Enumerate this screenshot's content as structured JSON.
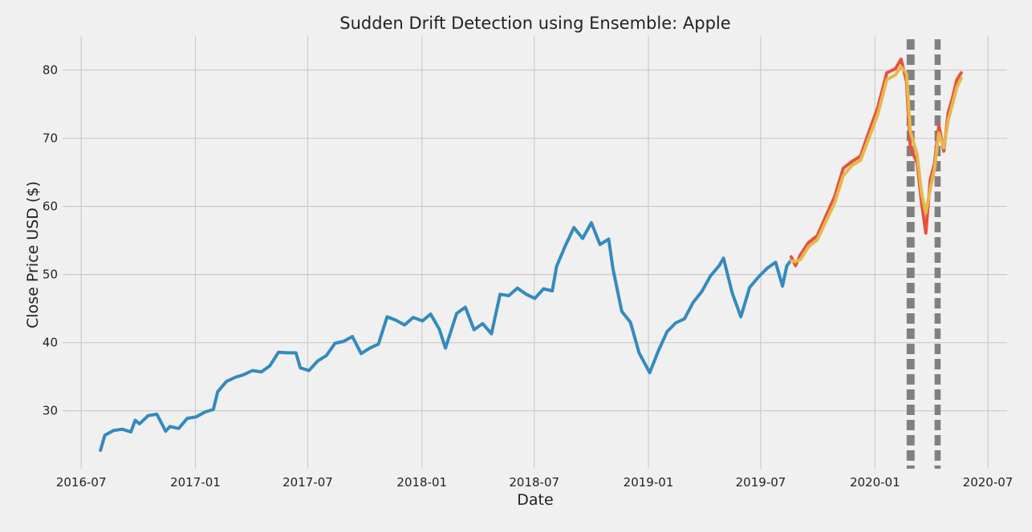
{
  "chart_data": {
    "type": "line",
    "title": "Sudden Drift Detection using Ensemble: Apple",
    "xlabel": "Date",
    "ylabel": "Close Price USD ($)",
    "xlim": [
      "2016-06-01",
      "2020-08-01"
    ],
    "ylim": [
      21.5,
      85
    ],
    "x_ticks": [
      "2016-07",
      "2017-01",
      "2017-07",
      "2018-01",
      "2018-07",
      "2019-01",
      "2019-07",
      "2020-01",
      "2020-07"
    ],
    "y_ticks": [
      30,
      40,
      50,
      60,
      70,
      80
    ],
    "grid": true,
    "legend": "none",
    "style_colors": {
      "background": "#f0f0f0",
      "grid": "#cbcbcb",
      "train": "#348abd",
      "actual": "#e5533d",
      "prediction": "#e6b74a",
      "drift": "#808080"
    },
    "series": [
      {
        "role": "train",
        "points": [
          [
            "2016-08-01",
            24.2
          ],
          [
            "2016-08-08",
            26.4
          ],
          [
            "2016-08-22",
            27.1
          ],
          [
            "2016-09-05",
            27.3
          ],
          [
            "2016-09-19",
            26.9
          ],
          [
            "2016-09-26",
            28.6
          ],
          [
            "2016-10-03",
            28.1
          ],
          [
            "2016-10-17",
            29.3
          ],
          [
            "2016-10-31",
            29.5
          ],
          [
            "2016-11-14",
            27.0
          ],
          [
            "2016-11-21",
            27.7
          ],
          [
            "2016-12-05",
            27.4
          ],
          [
            "2016-12-19",
            28.9
          ],
          [
            "2017-01-02",
            29.1
          ],
          [
            "2017-01-16",
            29.8
          ],
          [
            "2017-01-30",
            30.2
          ],
          [
            "2017-02-06",
            32.8
          ],
          [
            "2017-02-20",
            34.3
          ],
          [
            "2017-03-06",
            34.9
          ],
          [
            "2017-03-20",
            35.3
          ],
          [
            "2017-04-03",
            35.9
          ],
          [
            "2017-04-17",
            35.7
          ],
          [
            "2017-05-01",
            36.6
          ],
          [
            "2017-05-15",
            38.6
          ],
          [
            "2017-05-29",
            38.5
          ],
          [
            "2017-06-12",
            38.5
          ],
          [
            "2017-06-19",
            36.3
          ],
          [
            "2017-07-03",
            35.9
          ],
          [
            "2017-07-17",
            37.3
          ],
          [
            "2017-07-31",
            38.1
          ],
          [
            "2017-08-14",
            39.9
          ],
          [
            "2017-08-28",
            40.2
          ],
          [
            "2017-09-11",
            40.9
          ],
          [
            "2017-09-25",
            38.4
          ],
          [
            "2017-10-09",
            39.2
          ],
          [
            "2017-10-23",
            39.8
          ],
          [
            "2017-11-06",
            43.8
          ],
          [
            "2017-11-20",
            43.3
          ],
          [
            "2017-12-04",
            42.6
          ],
          [
            "2017-12-18",
            43.7
          ],
          [
            "2018-01-02",
            43.2
          ],
          [
            "2018-01-15",
            44.2
          ],
          [
            "2018-01-29",
            42.0
          ],
          [
            "2018-02-08",
            39.2
          ],
          [
            "2018-02-26",
            44.3
          ],
          [
            "2018-03-12",
            45.2
          ],
          [
            "2018-03-26",
            41.9
          ],
          [
            "2018-04-09",
            42.8
          ],
          [
            "2018-04-23",
            41.3
          ],
          [
            "2018-05-07",
            47.1
          ],
          [
            "2018-05-21",
            46.9
          ],
          [
            "2018-06-04",
            48.0
          ],
          [
            "2018-06-18",
            47.1
          ],
          [
            "2018-07-02",
            46.5
          ],
          [
            "2018-07-16",
            47.9
          ],
          [
            "2018-07-30",
            47.6
          ],
          [
            "2018-08-06",
            51.2
          ],
          [
            "2018-08-20",
            54.2
          ],
          [
            "2018-09-03",
            56.9
          ],
          [
            "2018-09-17",
            55.3
          ],
          [
            "2018-10-01",
            57.6
          ],
          [
            "2018-10-15",
            54.4
          ],
          [
            "2018-10-29",
            55.2
          ],
          [
            "2018-11-05",
            50.8
          ],
          [
            "2018-11-19",
            44.6
          ],
          [
            "2018-12-03",
            43.0
          ],
          [
            "2018-12-17",
            38.5
          ],
          [
            "2019-01-03",
            35.6
          ],
          [
            "2019-01-17",
            38.8
          ],
          [
            "2019-01-31",
            41.6
          ],
          [
            "2019-02-14",
            42.9
          ],
          [
            "2019-02-28",
            43.5
          ],
          [
            "2019-03-14",
            45.9
          ],
          [
            "2019-03-28",
            47.5
          ],
          [
            "2019-04-11",
            49.8
          ],
          [
            "2019-04-25",
            51.3
          ],
          [
            "2019-05-02",
            52.4
          ],
          [
            "2019-05-16",
            47.3
          ],
          [
            "2019-05-30",
            43.8
          ],
          [
            "2019-06-13",
            48.1
          ],
          [
            "2019-06-27",
            49.6
          ],
          [
            "2019-07-11",
            50.9
          ],
          [
            "2019-07-25",
            51.8
          ],
          [
            "2019-08-05",
            48.3
          ],
          [
            "2019-08-12",
            51.3
          ],
          [
            "2019-08-19",
            52.1
          ]
        ]
      },
      {
        "role": "actual",
        "points": [
          [
            "2019-08-19",
            52.6
          ],
          [
            "2019-08-26",
            51.3
          ],
          [
            "2019-09-03",
            52.9
          ],
          [
            "2019-09-16",
            54.7
          ],
          [
            "2019-09-30",
            55.7
          ],
          [
            "2019-10-14",
            58.6
          ],
          [
            "2019-10-28",
            61.4
          ],
          [
            "2019-11-11",
            65.6
          ],
          [
            "2019-11-25",
            66.6
          ],
          [
            "2019-12-09",
            67.4
          ],
          [
            "2019-12-23",
            71.1
          ],
          [
            "2020-01-06",
            74.6
          ],
          [
            "2020-01-20",
            79.6
          ],
          [
            "2020-02-03",
            80.2
          ],
          [
            "2020-02-12",
            81.6
          ],
          [
            "2020-02-21",
            78.3
          ],
          [
            "2020-02-27",
            68.6
          ],
          [
            "2020-03-09",
            66.4
          ],
          [
            "2020-03-16",
            60.6
          ],
          [
            "2020-03-23",
            56.1
          ],
          [
            "2020-03-30",
            63.8
          ],
          [
            "2020-04-06",
            66.3
          ],
          [
            "2020-04-13",
            71.9
          ],
          [
            "2020-04-21",
            68.1
          ],
          [
            "2020-04-28",
            73.7
          ],
          [
            "2020-05-05",
            75.9
          ],
          [
            "2020-05-12",
            78.6
          ],
          [
            "2020-05-19",
            79.6
          ]
        ]
      },
      {
        "role": "prediction",
        "points": [
          [
            "2019-08-19",
            52.0
          ],
          [
            "2019-08-26",
            51.9
          ],
          [
            "2019-09-03",
            52.2
          ],
          [
            "2019-09-16",
            54.1
          ],
          [
            "2019-09-30",
            55.1
          ],
          [
            "2019-10-14",
            57.8
          ],
          [
            "2019-10-28",
            60.5
          ],
          [
            "2019-11-11",
            64.5
          ],
          [
            "2019-11-25",
            66.0
          ],
          [
            "2019-12-09",
            66.8
          ],
          [
            "2019-12-23",
            70.2
          ],
          [
            "2020-01-06",
            73.6
          ],
          [
            "2020-01-20",
            78.6
          ],
          [
            "2020-02-03",
            79.3
          ],
          [
            "2020-02-12",
            80.5
          ],
          [
            "2020-02-21",
            79.5
          ],
          [
            "2020-02-27",
            71.0
          ],
          [
            "2020-03-09",
            67.6
          ],
          [
            "2020-03-16",
            62.0
          ],
          [
            "2020-03-23",
            59.0
          ],
          [
            "2020-03-30",
            62.5
          ],
          [
            "2020-04-06",
            65.5
          ],
          [
            "2020-04-13",
            70.8
          ],
          [
            "2020-04-21",
            68.6
          ],
          [
            "2020-04-28",
            72.6
          ],
          [
            "2020-05-05",
            75.0
          ],
          [
            "2020-05-12",
            77.5
          ],
          [
            "2020-05-19",
            78.8
          ]
        ]
      }
    ],
    "drift_points": [
      "2020-02-24",
      "2020-02-27",
      "2020-03-02",
      "2020-04-09",
      "2020-04-13"
    ]
  }
}
